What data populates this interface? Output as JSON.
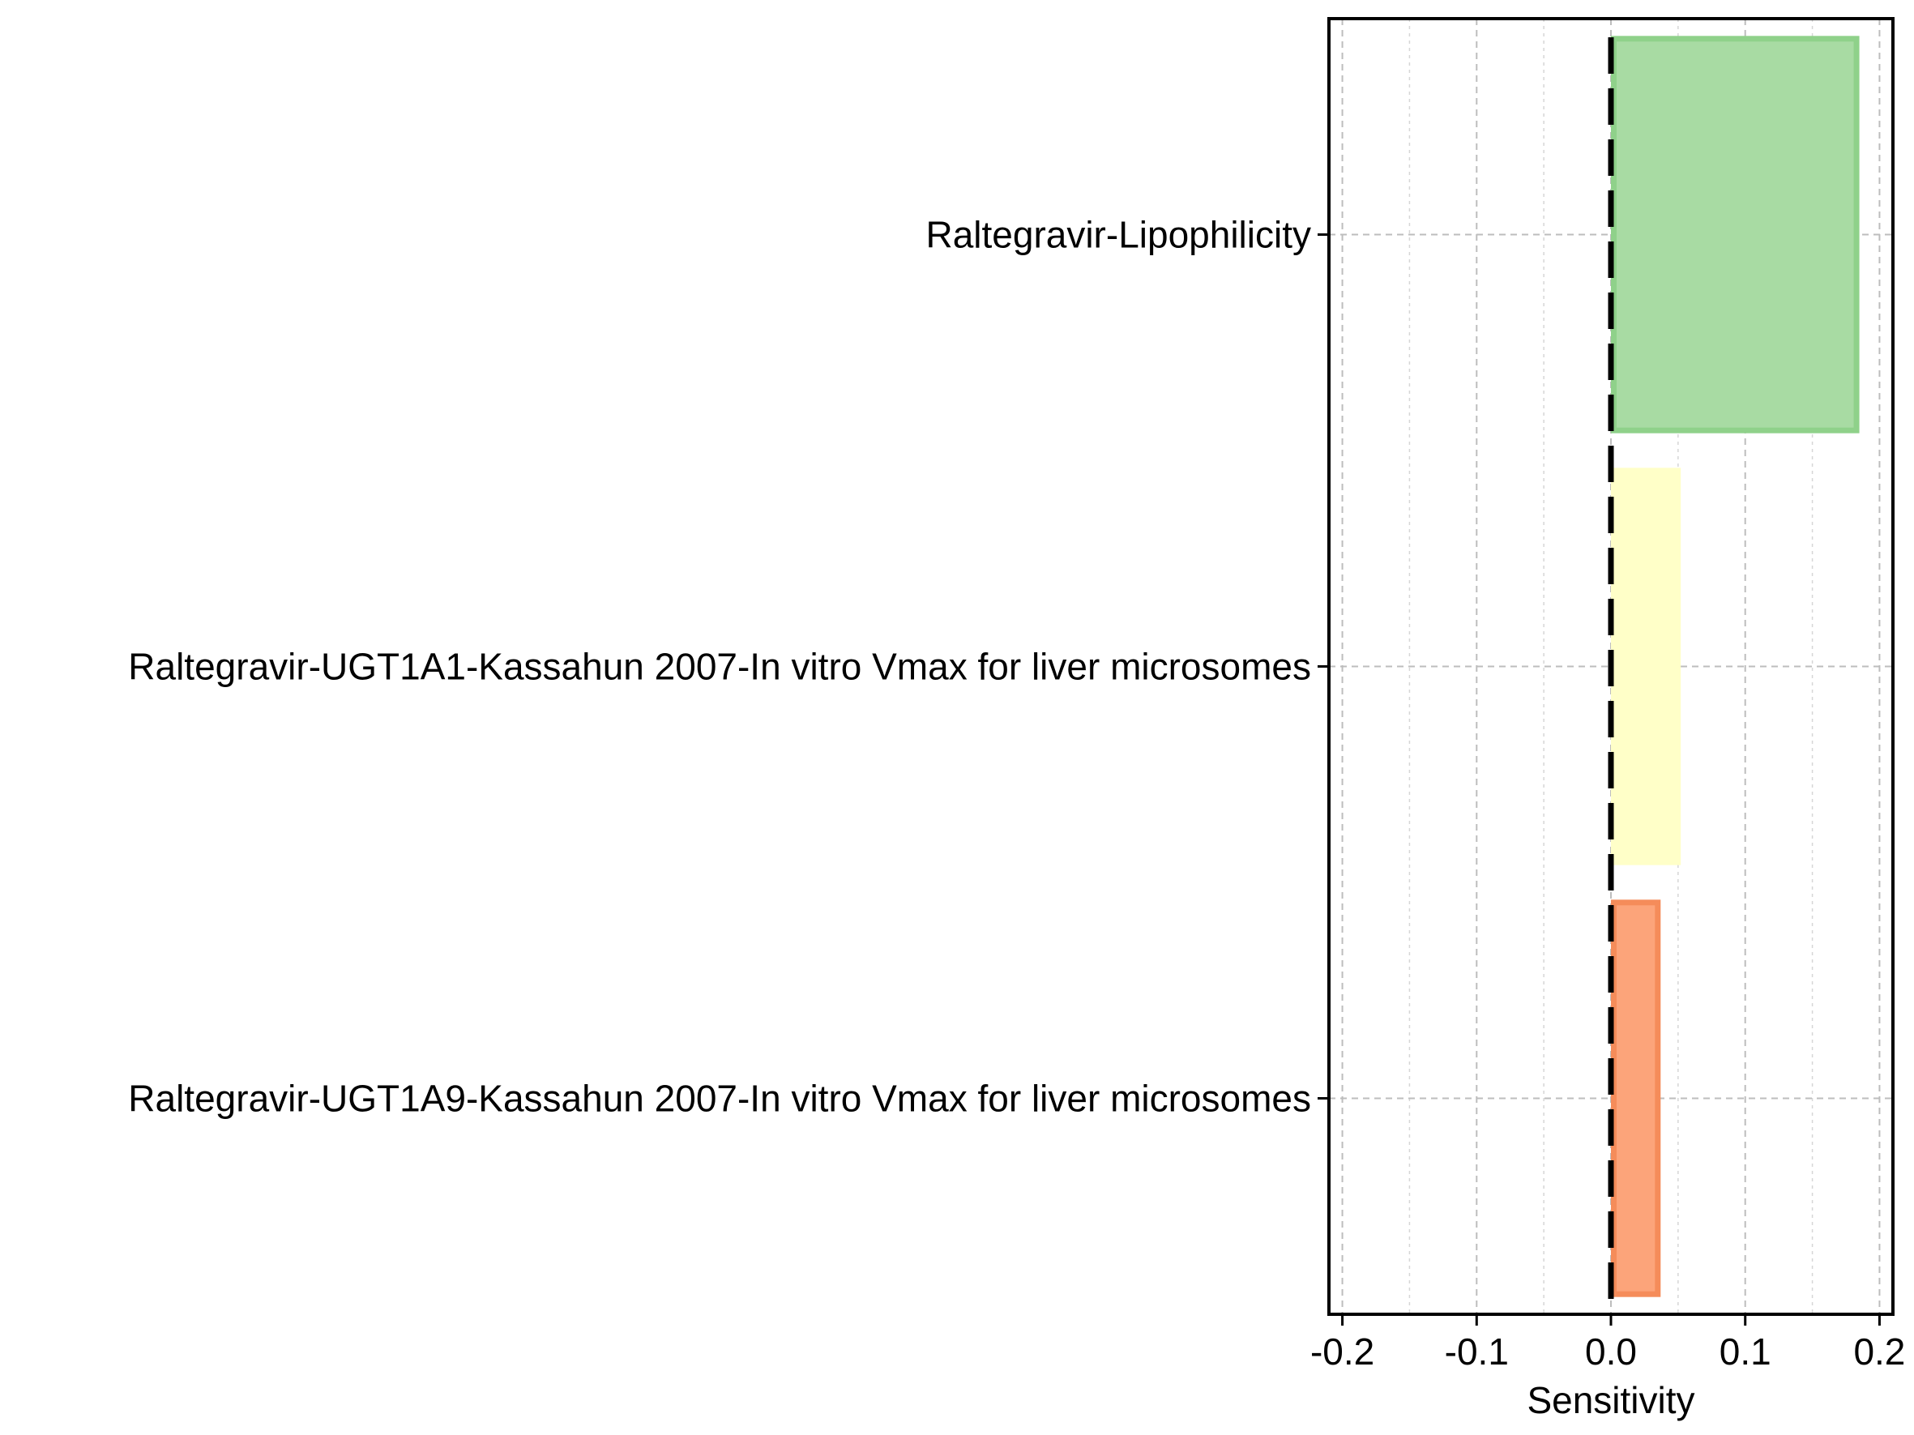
{
  "chart_data": {
    "type": "bar",
    "orientation": "horizontal",
    "categories": [
      "Raltegravir-Lipophilicity",
      "Raltegravir-UGT1A1-Kassahun 2007-In vitro Vmax for liver microsomes",
      "Raltegravir-UGT1A9-Kassahun 2007-In vitro Vmax for liver microsomes"
    ],
    "values": [
      0.185,
      0.052,
      0.037
    ],
    "colors": [
      "#a8dba3",
      "#ffffc8",
      "#fca47a"
    ],
    "edge_colors": [
      "#8fd18a",
      "#ffffc8",
      "#f58c5a"
    ],
    "title": "",
    "xlabel": "Sensitivity",
    "ylabel": "",
    "xlim": [
      -0.21,
      0.21
    ],
    "xticks": [
      -0.2,
      -0.1,
      0.0,
      0.1,
      0.2
    ],
    "xtick_labels": [
      "-0.2",
      "-0.1",
      "0.0",
      "0.1",
      "0.2"
    ],
    "minor_xticks": [
      -0.15,
      -0.05,
      0.05,
      0.15
    ],
    "grid": true,
    "zero_line": "dashed",
    "legend": "none"
  }
}
